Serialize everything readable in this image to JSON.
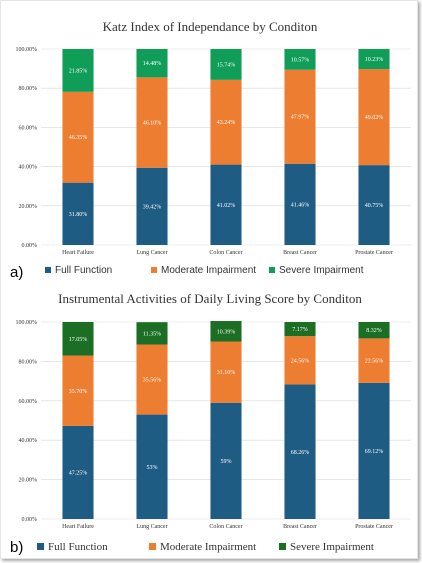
{
  "chart_data": [
    {
      "type": "bar",
      "stacked": true,
      "panel_label": "a)",
      "title": "Katz Index of Independance by Conditon",
      "categories": [
        "Heart Failure",
        "Lung Cancer",
        "Colon Cancer",
        "Breast Cancer",
        "Prostate Cancer"
      ],
      "series": [
        {
          "name": "Full Function",
          "color": "#1f5c84",
          "values": [
            31.8,
            39.42,
            41.02,
            41.46,
            40.75
          ],
          "labels": [
            "31.80%",
            "39.42%",
            "41.02%",
            "41.46%",
            "40.75%"
          ]
        },
        {
          "name": "Moderate Impairment",
          "color": "#ed7d31",
          "values": [
            46.35,
            46.1,
            43.24,
            47.97,
            49.02
          ],
          "labels": [
            "46.35%",
            "46.10%",
            "43.24%",
            "47.97%",
            "49.02%"
          ]
        },
        {
          "name": "Severe Impairment",
          "color": "#0f9d58",
          "values": [
            21.85,
            14.48,
            15.74,
            10.57,
            10.23
          ],
          "labels": [
            "21.85%",
            "14.48%",
            "15.74%",
            "10.57%",
            "10.23%"
          ]
        }
      ],
      "yticks": [
        "0.00%",
        "20.00%",
        "40.00%",
        "60.00%",
        "80.00%",
        "100.00%"
      ],
      "ylim": [
        0,
        100
      ],
      "grid": true,
      "legend": "bottom"
    },
    {
      "type": "bar",
      "stacked": true,
      "panel_label": "b)",
      "title": "Instrumental Activities of Daily Living Score by Conditon",
      "categories": [
        "Heart Failure",
        "Lung Cancer",
        "Colon Cancer",
        "Breast Cancer",
        "Prostate Cancer"
      ],
      "series": [
        {
          "name": "Full Function",
          "color": "#1f5c84",
          "values": [
            47.25,
            53,
            59,
            68.26,
            69.12
          ],
          "labels": [
            "47.25%",
            "53%",
            "59%",
            "68.26%",
            "69.12%"
          ]
        },
        {
          "name": "Moderate Impairment",
          "color": "#ed7d31",
          "values": [
            35.7,
            35.56,
            31.1,
            24.56,
            22.56
          ],
          "labels": [
            "35.70%",
            "35.56%",
            "31.10%",
            "24.56%",
            "22.56%"
          ]
        },
        {
          "name": "Severe Impairment",
          "color": "#1b6e23",
          "values": [
            17.05,
            11.35,
            10.39,
            7.17,
            8.32
          ],
          "labels": [
            "17.05%",
            "11.35%",
            "10.39%",
            "7.17%",
            "8.32%"
          ]
        }
      ],
      "yticks": [
        "0.00%",
        "20.00%",
        "40.00%",
        "60.00%",
        "80.00%",
        "100.00%"
      ],
      "ylim": [
        0,
        100
      ],
      "grid": true,
      "legend": "bottom"
    }
  ]
}
